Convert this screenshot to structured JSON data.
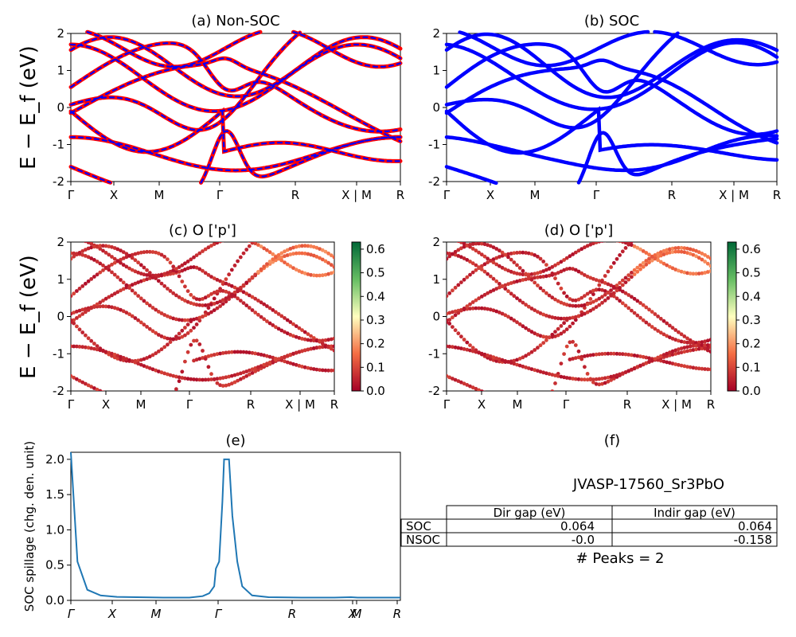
{
  "chart_data": [
    {
      "id": "a",
      "type": "line",
      "title": "(a) Non-SOC",
      "ylabel": "E − E_f (eV)",
      "xticks": [
        "Γ",
        "X",
        "M",
        "Γ",
        "R",
        "X | M",
        "R"
      ],
      "ylim": [
        -2,
        2
      ],
      "yticks": [
        "-2",
        "-1",
        "0",
        "1",
        "2"
      ],
      "grid": false,
      "series": [
        {
          "color": "#ff0000",
          "style": "solid",
          "values": [
            [
              0.1,
              0.45,
              0.9,
              1.2,
              1.6,
              2.1
            ],
            [
              -0.15,
              0.15,
              0.5,
              0.8,
              1.0,
              1.4
            ],
            [
              -0.1,
              -0.6,
              -0.95,
              -1.15,
              -1.05,
              -0.55,
              -0.05
            ],
            [
              0.1,
              -0.1,
              -0.4,
              -0.7,
              -0.9,
              -0.5,
              0.1
            ],
            [
              0.55,
              0.9,
              1.1,
              1.6,
              1.85,
              1.2,
              0.55,
              0.6
            ]
          ]
        },
        {
          "color": "#0000ff",
          "style": "dashed",
          "values": []
        }
      ]
    },
    {
      "id": "b",
      "type": "line",
      "title": "(b) SOC",
      "xticks": [
        "Γ",
        "X",
        "M",
        "Γ",
        "R",
        "X | M",
        "R"
      ],
      "ylim": [
        -2,
        2
      ],
      "yticks": [
        "-2",
        "-1",
        "0",
        "1",
        "2"
      ],
      "grid": false,
      "series": [
        {
          "color": "#0000ff",
          "style": "solid",
          "values": []
        }
      ]
    },
    {
      "id": "c",
      "type": "scatter",
      "title": "(c)  O ['p']",
      "ylabel": "E − E_f (eV)",
      "xticks": [
        "Γ",
        "X",
        "M",
        "Γ",
        "R",
        "X | M",
        "R"
      ],
      "ylim": [
        -2,
        2
      ],
      "yticks": [
        "-2",
        "-1",
        "0",
        "1",
        "2"
      ],
      "colorbar": {
        "ticks": [
          "0.0",
          "0.1",
          "0.2",
          "0.3",
          "0.4",
          "0.5",
          "0.6"
        ],
        "range": [
          0,
          0.63
        ],
        "colormap": "RdYlGn"
      }
    },
    {
      "id": "d",
      "type": "scatter",
      "title": "(d) O ['p']",
      "xticks": [
        "Γ",
        "X",
        "M",
        "Γ",
        "R",
        "X | M",
        "R"
      ],
      "ylim": [
        -2,
        2
      ],
      "yticks": [
        "-2",
        "-1",
        "0",
        "1",
        "2"
      ],
      "colorbar": {
        "ticks": [
          "0.0",
          "0.1",
          "0.2",
          "0.3",
          "0.4",
          "0.5",
          "0.6"
        ],
        "range": [
          0,
          0.63
        ],
        "colormap": "RdYlGn"
      }
    },
    {
      "id": "e",
      "type": "line",
      "title": "(e)",
      "ylabel": "SOC spillage (chg. den. unit)",
      "xticks": [
        "Γ",
        "X",
        "M",
        "Γ",
        "R",
        "X",
        "M",
        "R"
      ],
      "ylim": [
        0,
        2.1
      ],
      "yticks": [
        "0.0",
        "0.5",
        "1.0",
        "1.5",
        "2.0"
      ],
      "series": [
        {
          "color": "#1f77b4",
          "x": [
            0,
            0.02,
            0.05,
            0.09,
            0.14,
            0.2,
            0.28,
            0.36,
            0.4,
            0.42,
            0.435,
            0.44,
            0.45,
            0.46,
            0.465,
            0.47,
            0.48,
            0.49,
            0.505,
            0.52,
            0.55,
            0.6,
            0.7,
            0.8,
            0.85,
            0.87,
            0.9,
            0.95,
            1.0
          ],
          "values": [
            2.1,
            0.55,
            0.15,
            0.07,
            0.05,
            0.045,
            0.04,
            0.04,
            0.06,
            0.1,
            0.2,
            0.45,
            0.55,
            1.4,
            2.0,
            2.0,
            2.0,
            1.2,
            0.55,
            0.2,
            0.07,
            0.045,
            0.04,
            0.04,
            0.045,
            0.04,
            0.04,
            0.04,
            0.04
          ]
        }
      ]
    },
    {
      "id": "f",
      "type": "table",
      "title": "(f)",
      "subtitle": "JVASP-17560_Sr3PbO",
      "columns": [
        "",
        "Dir gap (eV)",
        "Indir gap (eV)"
      ],
      "rows": [
        [
          "SOC",
          "0.064",
          "0.064"
        ],
        [
          "NSOC",
          "-0.0",
          "-0.158"
        ]
      ],
      "footer": "# Peaks = 2"
    }
  ]
}
